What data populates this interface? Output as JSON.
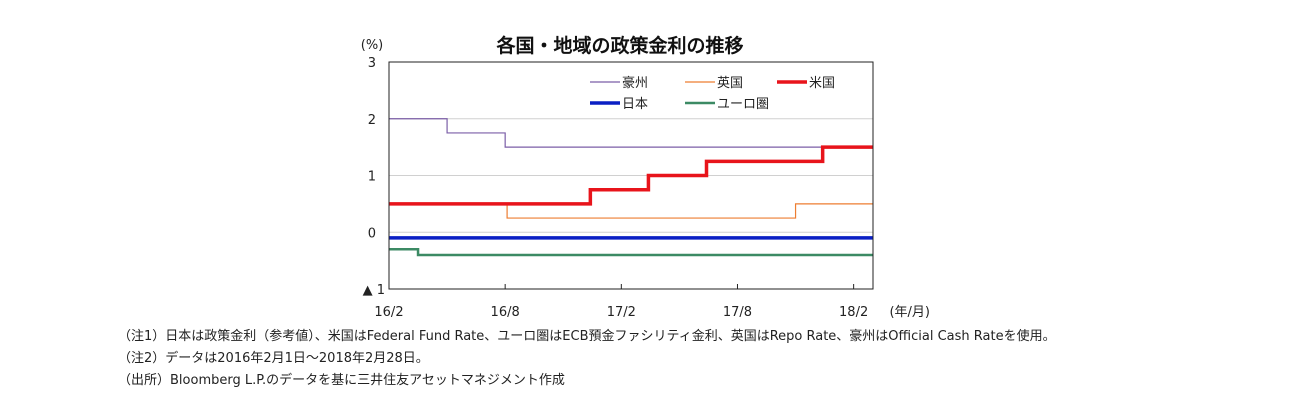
{
  "chart_data": {
    "type": "line",
    "title": "各国・地域の政策金利の推移",
    "ylabel": "(%)",
    "xlabel": "(年/月)",
    "ylim": [
      -1,
      3
    ],
    "yticks": [
      {
        "value": 3,
        "label": "3"
      },
      {
        "value": 2,
        "label": "2"
      },
      {
        "value": 1,
        "label": "1"
      },
      {
        "value": 0,
        "label": "0"
      },
      {
        "value": -1,
        "label": "▲ 1"
      }
    ],
    "x_unit": "months since 2016/2/1",
    "xlim": [
      0,
      25
    ],
    "xticks": [
      {
        "value": 0,
        "label": "16/2"
      },
      {
        "value": 6,
        "label": "16/8"
      },
      {
        "value": 12,
        "label": "17/2"
      },
      {
        "value": 18,
        "label": "17/8"
      },
      {
        "value": 24,
        "label": "18/2"
      }
    ],
    "grid": true,
    "legend_position": "top-right",
    "series": [
      {
        "name": "豪州",
        "color": "#7b5ea7",
        "width": 1.2,
        "steps": [
          [
            0,
            2.0
          ],
          [
            3,
            1.75
          ],
          [
            6,
            1.5
          ]
        ]
      },
      {
        "name": "英国",
        "color": "#ed7d31",
        "width": 1.2,
        "steps": [
          [
            0,
            0.5
          ],
          [
            6.1,
            0.25
          ],
          [
            21,
            0.5
          ]
        ]
      },
      {
        "name": "米国",
        "color": "#e8141b",
        "width": 3.5,
        "steps": [
          [
            0,
            0.5
          ],
          [
            10.4,
            0.75
          ],
          [
            13.4,
            1.0
          ],
          [
            16.4,
            1.25
          ],
          [
            22.4,
            1.5
          ]
        ]
      },
      {
        "name": "日本",
        "color": "#0a1fc4",
        "width": 3.5,
        "steps": [
          [
            0,
            -0.1
          ]
        ]
      },
      {
        "name": "ユーロ圏",
        "color": "#3c8a64",
        "width": 2.5,
        "steps": [
          [
            0,
            -0.3
          ],
          [
            1.5,
            -0.4
          ]
        ]
      }
    ]
  },
  "notes": [
    "（注1）日本は政策金利（参考値）、米国はFederal Fund Rate、ユーロ圏はECB預金ファシリティ金利、英国はRepo Rate、豪州はOfficial Cash Rateを使用。",
    "（注2）データは2016年2月1日～2018年2月28日。",
    "（出所）Bloomberg L.P.のデータを基に三井住友アセットマネジメント作成"
  ]
}
